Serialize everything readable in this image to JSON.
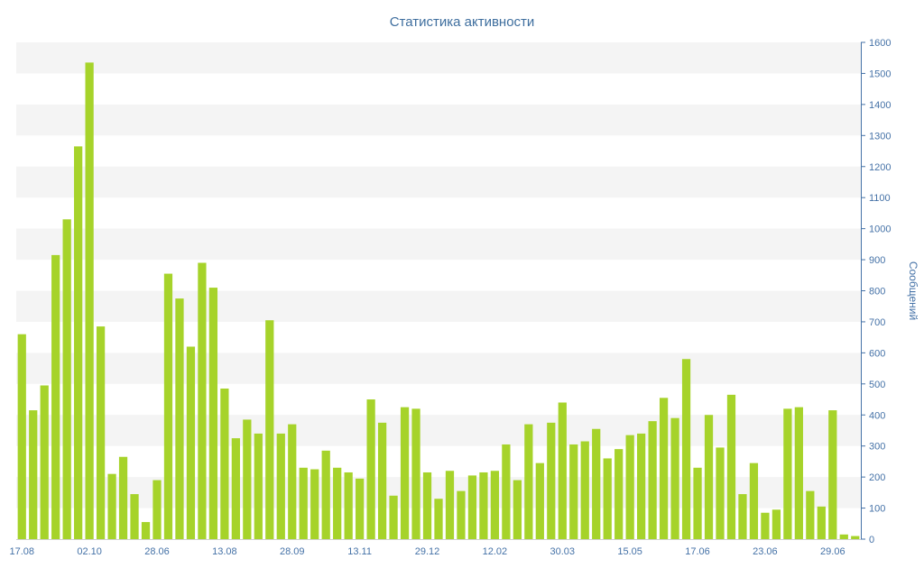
{
  "chart_data": {
    "type": "bar",
    "title": "Статистика активности",
    "xlabel": "",
    "ylabel": "Сообщений",
    "ylim": [
      0,
      1600
    ],
    "y_tick_interval": 100,
    "y_tick_labels": [
      "0",
      "100",
      "200",
      "300",
      "400",
      "500",
      "600",
      "700",
      "800",
      "900",
      "1000",
      "1100",
      "1200",
      "1300",
      "1400",
      "1500",
      "1600"
    ],
    "x_ticks": [
      {
        "index": 0,
        "label": "17.08"
      },
      {
        "index": 6,
        "label": "02.10"
      },
      {
        "index": 12,
        "label": "28.06"
      },
      {
        "index": 18,
        "label": "13.08"
      },
      {
        "index": 24,
        "label": "28.09"
      },
      {
        "index": 30,
        "label": "13.11"
      },
      {
        "index": 36,
        "label": "29.12"
      },
      {
        "index": 42,
        "label": "12.02"
      },
      {
        "index": 48,
        "label": "30.03"
      },
      {
        "index": 54,
        "label": "15.05"
      },
      {
        "index": 60,
        "label": "17.06"
      },
      {
        "index": 66,
        "label": "23.06"
      },
      {
        "index": 72,
        "label": "29.06"
      }
    ],
    "values": [
      660,
      415,
      495,
      915,
      1030,
      1265,
      1535,
      685,
      210,
      265,
      145,
      55,
      190,
      855,
      775,
      620,
      890,
      810,
      485,
      325,
      385,
      340,
      705,
      340,
      370,
      230,
      225,
      285,
      230,
      215,
      195,
      450,
      375,
      140,
      425,
      420,
      215,
      130,
      220,
      155,
      205,
      215,
      220,
      305,
      190,
      370,
      245,
      375,
      440,
      305,
      315,
      355,
      260,
      290,
      335,
      340,
      380,
      455,
      390,
      580,
      230,
      400,
      295,
      465,
      145,
      245,
      85,
      95,
      420,
      425,
      155,
      105,
      415,
      15,
      10
    ],
    "legend": "off",
    "grid": "alternating-horizontal-bands",
    "colors": {
      "bar": "#a6d32a",
      "axis_text": "#4572a7",
      "axis_line": "#4572a7",
      "title": "#3e6e9e",
      "band": "#f4f4f4",
      "baseline": "#d0d0d0",
      "background": "#ffffff"
    }
  }
}
